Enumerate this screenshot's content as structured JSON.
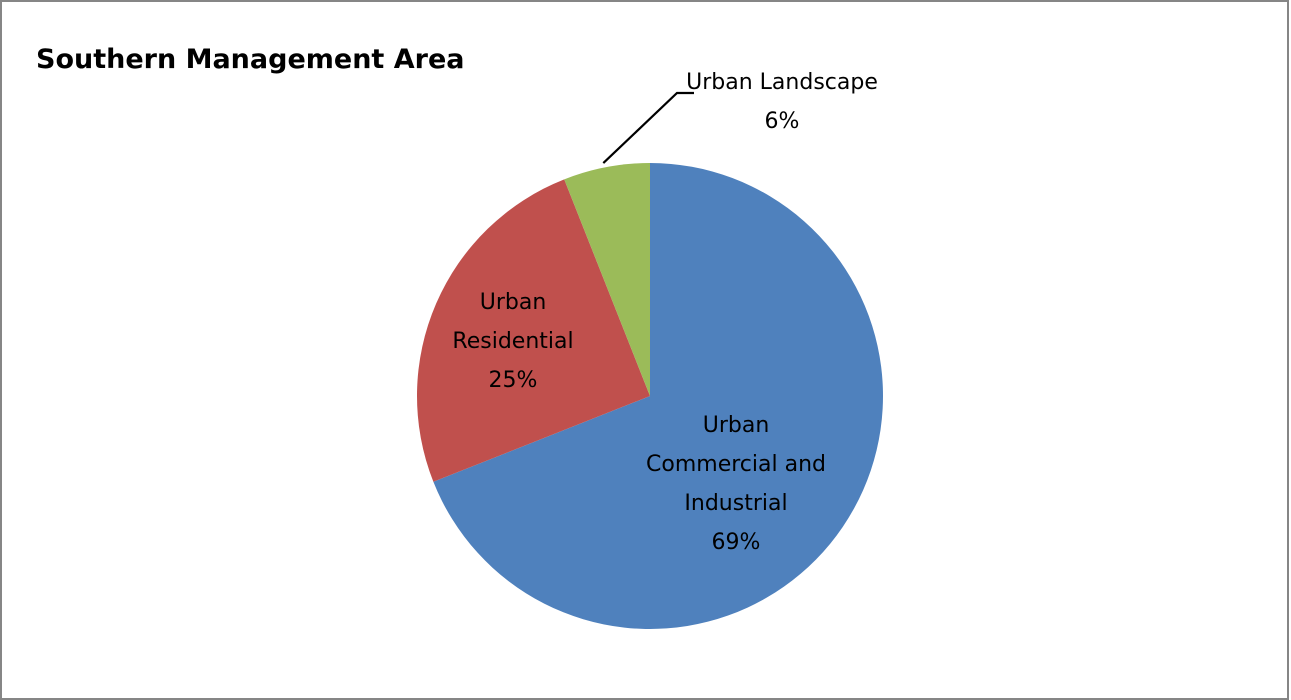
{
  "chart_data": {
    "type": "pie",
    "title": "Southern Management Area",
    "slices": [
      {
        "category": "Urban Commercial and Industrial",
        "label_lines": [
          "Urban",
          "Commercial and",
          "Industrial"
        ],
        "value": 69,
        "value_label": "69%",
        "color": "#4f81bd"
      },
      {
        "category": "Urban Residential",
        "label_lines": [
          "Urban",
          "Residential"
        ],
        "value": 25,
        "value_label": "25%",
        "color": "#c0504d"
      },
      {
        "category": "Urban Landscape",
        "label_lines": [
          "Urban Landscape"
        ],
        "value": 6,
        "value_label": "6%",
        "color": "#9bbb59"
      }
    ],
    "start_angle": "12 o'clock",
    "direction": "clockwise",
    "legend": "none",
    "data_labels": "category name and percentage"
  }
}
